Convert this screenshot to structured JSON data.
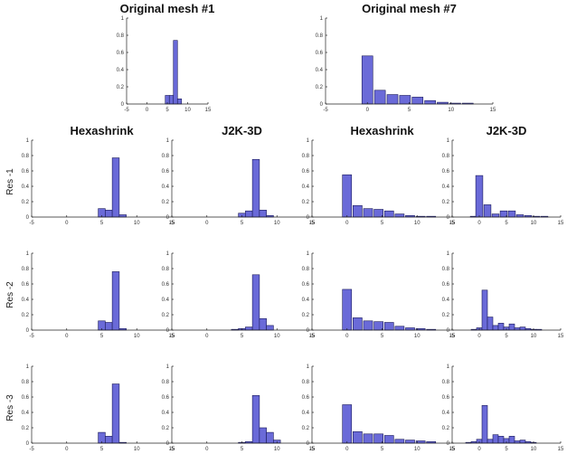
{
  "figure": {
    "row_labels": [
      "Res -1",
      "Res -2",
      "Res -3"
    ],
    "bar_color": "#6a6ad8",
    "bar_edge_color": "#1a1a5a"
  },
  "chart_data": [
    {
      "id": "orig1",
      "type": "bar",
      "title": "Original mesh #1",
      "xlim": [
        -5,
        15
      ],
      "ylim": [
        0,
        1
      ],
      "xticks": [
        -5,
        0,
        5,
        10,
        15
      ],
      "yticks": [
        0,
        0.2,
        0.4,
        0.6,
        0.8,
        1
      ],
      "bin_width": 1,
      "x": [
        5,
        6,
        7,
        8
      ],
      "values": [
        0.1,
        0.1,
        0.74,
        0.06
      ]
    },
    {
      "id": "orig7",
      "type": "bar",
      "title": "Original mesh #7",
      "xlim": [
        -5,
        15
      ],
      "ylim": [
        0,
        1
      ],
      "xticks": [
        -5,
        0,
        5,
        10,
        15
      ],
      "yticks": [
        0,
        0.2,
        0.4,
        0.6,
        0.8,
        1
      ],
      "bin_width": 1.3,
      "x": [
        0,
        1.5,
        3,
        4.5,
        6,
        7.5,
        9,
        10.5,
        12
      ],
      "values": [
        0.56,
        0.16,
        0.11,
        0.1,
        0.08,
        0.04,
        0.02,
        0.01,
        0.01
      ]
    },
    {
      "id": "r1hexA",
      "type": "bar",
      "title": "Hexashrink",
      "row_label": "Res -1",
      "xlim": [
        -5,
        15
      ],
      "ylim": [
        0,
        1
      ],
      "xticks": [
        -5,
        0,
        5,
        10,
        15
      ],
      "yticks": [
        0,
        0.2,
        0.4,
        0.6,
        0.8,
        1
      ],
      "bin_width": 1,
      "x": [
        5,
        6,
        7,
        8
      ],
      "values": [
        0.11,
        0.09,
        0.77,
        0.03
      ]
    },
    {
      "id": "r1j2kA",
      "type": "bar",
      "title": "J2K-3D",
      "xlim": [
        -5,
        15
      ],
      "ylim": [
        0,
        1
      ],
      "xticks": [
        -5,
        0,
        5,
        10,
        15
      ],
      "yticks": [
        0,
        0.2,
        0.4,
        0.6,
        0.8,
        1
      ],
      "bin_width": 1,
      "x": [
        5,
        6,
        7,
        8,
        9
      ],
      "values": [
        0.05,
        0.08,
        0.75,
        0.09,
        0.02
      ]
    },
    {
      "id": "r1hexB",
      "type": "bar",
      "title": "Hexashrink",
      "xlim": [
        -5,
        15
      ],
      "ylim": [
        0,
        1
      ],
      "xticks": [
        -5,
        0,
        5,
        10,
        15
      ],
      "yticks": [
        0,
        0.2,
        0.4,
        0.6,
        0.8,
        1
      ],
      "bin_width": 1.3,
      "x": [
        0,
        1.5,
        3,
        4.5,
        6,
        7.5,
        9,
        10.5,
        12
      ],
      "values": [
        0.55,
        0.15,
        0.11,
        0.1,
        0.08,
        0.04,
        0.02,
        0.01,
        0.01
      ]
    },
    {
      "id": "r1j2kB",
      "type": "bar",
      "title": "J2K-3D",
      "xlim": [
        -5,
        15
      ],
      "ylim": [
        0,
        1
      ],
      "xticks": [
        -5,
        0,
        5,
        10,
        15
      ],
      "yticks": [
        0,
        0.2,
        0.4,
        0.6,
        0.8,
        1
      ],
      "bin_width": 1.3,
      "x": [
        -1,
        0,
        1.5,
        3,
        4.5,
        6,
        7.5,
        9,
        10.5,
        12
      ],
      "values": [
        0.01,
        0.54,
        0.16,
        0.04,
        0.08,
        0.08,
        0.03,
        0.02,
        0.01,
        0.01
      ]
    },
    {
      "id": "r2hexA",
      "type": "bar",
      "title": "",
      "row_label": "Res -2",
      "xlim": [
        -5,
        15
      ],
      "ylim": [
        0,
        1
      ],
      "xticks": [
        -5,
        0,
        5,
        10,
        15
      ],
      "yticks": [
        0,
        0.2,
        0.4,
        0.6,
        0.8,
        1
      ],
      "bin_width": 1,
      "x": [
        5,
        6,
        7,
        8
      ],
      "values": [
        0.12,
        0.1,
        0.76,
        0.02
      ]
    },
    {
      "id": "r2j2kA",
      "type": "bar",
      "title": "",
      "xlim": [
        -5,
        15
      ],
      "ylim": [
        0,
        1
      ],
      "xticks": [
        -5,
        0,
        5,
        10,
        15
      ],
      "yticks": [
        0,
        0.2,
        0.4,
        0.6,
        0.8,
        1
      ],
      "bin_width": 1,
      "x": [
        4,
        5,
        6,
        7,
        8,
        9
      ],
      "values": [
        0.01,
        0.02,
        0.04,
        0.72,
        0.15,
        0.06
      ]
    },
    {
      "id": "r2hexB",
      "type": "bar",
      "title": "",
      "xlim": [
        -5,
        15
      ],
      "ylim": [
        0,
        1
      ],
      "xticks": [
        -5,
        0,
        5,
        10,
        15
      ],
      "yticks": [
        0,
        0.2,
        0.4,
        0.6,
        0.8,
        1
      ],
      "bin_width": 1.3,
      "x": [
        0,
        1.5,
        3,
        4.5,
        6,
        7.5,
        9,
        10.5,
        12
      ],
      "values": [
        0.53,
        0.16,
        0.12,
        0.11,
        0.1,
        0.05,
        0.03,
        0.02,
        0.01
      ]
    },
    {
      "id": "r2j2kB",
      "type": "bar",
      "title": "",
      "xlim": [
        -5,
        15
      ],
      "ylim": [
        0,
        1
      ],
      "xticks": [
        -5,
        0,
        5,
        10,
        15
      ],
      "yticks": [
        0,
        0.2,
        0.4,
        0.6,
        0.8,
        1
      ],
      "bin_width": 1,
      "x": [
        -1,
        0,
        1,
        2,
        3,
        4,
        5,
        6,
        7,
        8,
        9,
        10,
        11
      ],
      "values": [
        0.01,
        0.03,
        0.52,
        0.17,
        0.06,
        0.09,
        0.04,
        0.08,
        0.03,
        0.04,
        0.02,
        0.01,
        0.01
      ]
    },
    {
      "id": "r3hexA",
      "type": "bar",
      "title": "",
      "row_label": "Res -3",
      "xlim": [
        -5,
        15
      ],
      "ylim": [
        0,
        1
      ],
      "xticks": [
        -5,
        0,
        5,
        10,
        15
      ],
      "yticks": [
        0,
        0.2,
        0.4,
        0.6,
        0.8,
        1
      ],
      "bin_width": 1,
      "x": [
        5,
        6,
        7,
        8
      ],
      "values": [
        0.14,
        0.09,
        0.77,
        0.01
      ]
    },
    {
      "id": "r3j2kA",
      "type": "bar",
      "title": "",
      "xlim": [
        -5,
        15
      ],
      "ylim": [
        0,
        1
      ],
      "xticks": [
        -5,
        0,
        5,
        10,
        15
      ],
      "yticks": [
        0,
        0.2,
        0.4,
        0.6,
        0.8,
        1
      ],
      "bin_width": 1,
      "x": [
        5,
        6,
        7,
        8,
        9,
        10
      ],
      "values": [
        0.01,
        0.02,
        0.62,
        0.2,
        0.14,
        0.04
      ]
    },
    {
      "id": "r3hexB",
      "type": "bar",
      "title": "",
      "xlim": [
        -5,
        15
      ],
      "ylim": [
        0,
        1
      ],
      "xticks": [
        -5,
        0,
        5,
        10,
        15
      ],
      "yticks": [
        0,
        0.2,
        0.4,
        0.6,
        0.8,
        1
      ],
      "bin_width": 1.3,
      "x": [
        0,
        1.5,
        3,
        4.5,
        6,
        7.5,
        9,
        10.5,
        12
      ],
      "values": [
        0.5,
        0.15,
        0.12,
        0.12,
        0.1,
        0.05,
        0.04,
        0.03,
        0.02
      ]
    },
    {
      "id": "r3j2kB",
      "type": "bar",
      "title": "",
      "xlim": [
        -5,
        15
      ],
      "ylim": [
        0,
        1
      ],
      "xticks": [
        -5,
        0,
        5,
        10,
        15
      ],
      "yticks": [
        0,
        0.2,
        0.4,
        0.6,
        0.8,
        1
      ],
      "bin_width": 1,
      "x": [
        -2,
        -1,
        0,
        1,
        2,
        3,
        4,
        5,
        6,
        7,
        8,
        9,
        10
      ],
      "values": [
        0.01,
        0.02,
        0.05,
        0.49,
        0.05,
        0.11,
        0.09,
        0.06,
        0.09,
        0.03,
        0.04,
        0.02,
        0.01
      ]
    }
  ]
}
